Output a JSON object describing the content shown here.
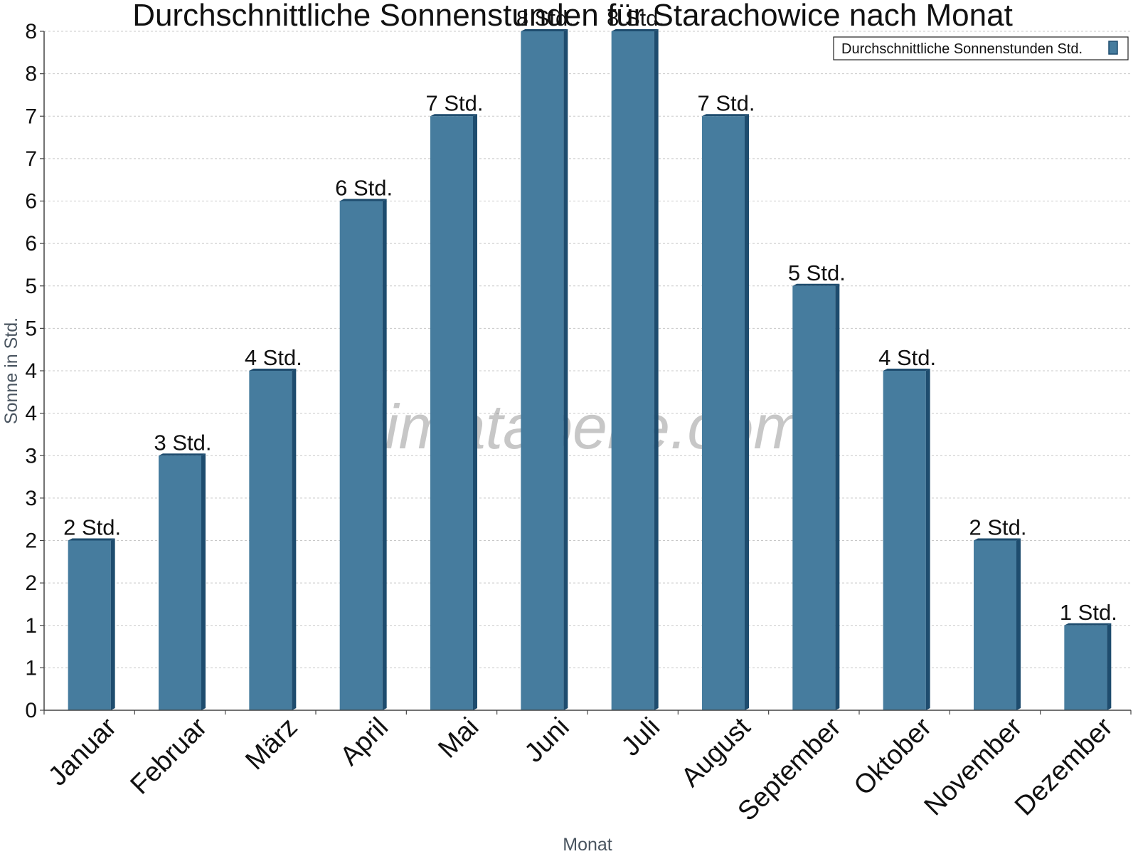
{
  "chart_data": {
    "type": "bar",
    "title": "Durchschnittliche Sonnenstunden für Starachowice nach Monat",
    "xlabel": "Monat",
    "ylabel": "Sonne in Std.",
    "categories": [
      "Januar",
      "Februar",
      "März",
      "April",
      "Mai",
      "Juni",
      "Juli",
      "August",
      "September",
      "Oktober",
      "November",
      "Dezember"
    ],
    "series": [
      {
        "name": "Durchschnittliche Sonnenstunden Std.",
        "values": [
          2,
          3,
          4,
          6,
          7,
          8,
          8,
          7,
          5,
          4,
          2,
          1
        ],
        "labels": [
          "2 Std.",
          "3 Std.",
          "4 Std.",
          "6 Std.",
          "7 Std.",
          "8 Std.",
          "8 Std.",
          "7 Std.",
          "5 Std.",
          "4 Std.",
          "2 Std.",
          "1 Std."
        ]
      }
    ],
    "ylim": [
      0,
      8
    ],
    "yticks": [
      0,
      0.5,
      1,
      1.5,
      2,
      2.5,
      3,
      3.5,
      4,
      4.5,
      5,
      5.5,
      6,
      6.5,
      7,
      7.5,
      8
    ],
    "ytick_labels": [
      "0",
      "1",
      "1",
      "2",
      "2",
      "3",
      "3",
      "4",
      "4",
      "5",
      "5",
      "6",
      "6",
      "7",
      "7",
      "8",
      "8"
    ],
    "grid": true,
    "legend_position": "top-right",
    "colors": {
      "bar": "#467c9e",
      "bar_dark": "#1e4c6e",
      "grid": "#c8c8c8",
      "axis": "#444444"
    }
  },
  "watermark": "klimatabelle.com"
}
